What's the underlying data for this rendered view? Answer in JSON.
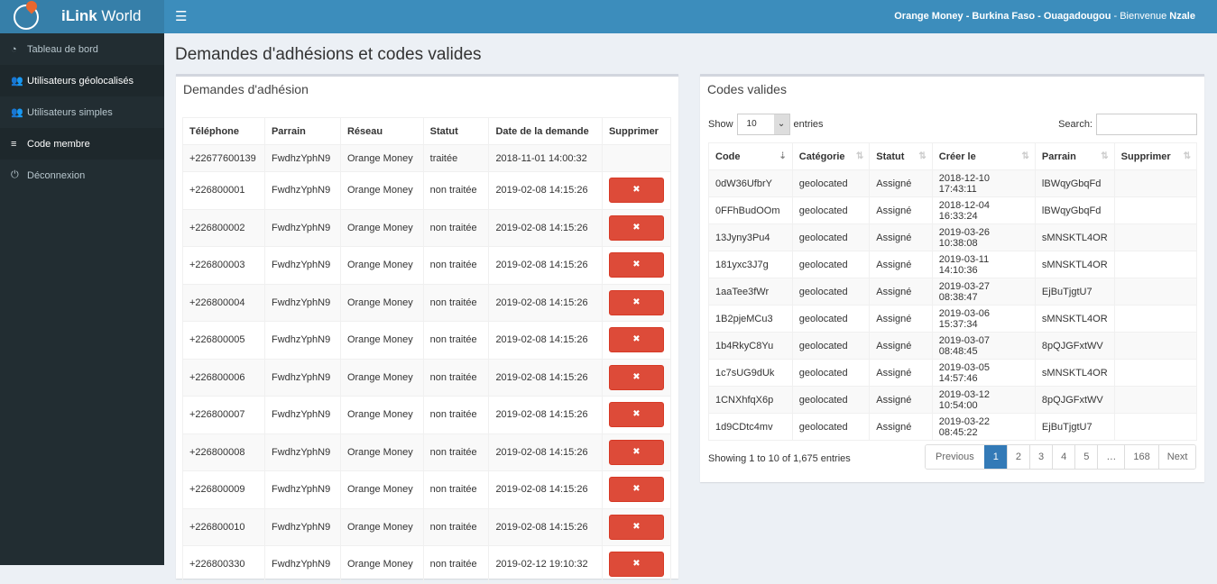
{
  "header": {
    "brand_bold": "iLink",
    "brand_rest": " World",
    "context": "Orange Money - Burkina Faso - Ouagadougou",
    "welcome": " - Bienvenue ",
    "user": "Nzale"
  },
  "sidebar": {
    "items": [
      {
        "label": "Tableau de bord",
        "icon": "dashboard-icon"
      },
      {
        "label": "Utilisateurs géolocalisés",
        "icon": "users-icon"
      },
      {
        "label": "Utilisateurs simples",
        "icon": "users-icon"
      },
      {
        "label": "Code membre",
        "icon": "database-icon"
      },
      {
        "label": "Déconnexion",
        "icon": "power-icon"
      }
    ]
  },
  "page": {
    "title": "Demandes d'adhésions et codes valides"
  },
  "requests": {
    "title": "Demandes d'adhésion",
    "columns": [
      "Téléphone",
      "Parrain",
      "Réseau",
      "Statut",
      "Date de la demande",
      "Supprimer"
    ],
    "delete_icon": "✖",
    "rows": [
      [
        "+22677600139",
        "FwdhzYphN9",
        "Orange Money",
        "traitée",
        "2018-11-01 14:00:32"
      ],
      [
        "+226800001",
        "FwdhzYphN9",
        "Orange Money",
        "non traitée",
        "2019-02-08 14:15:26"
      ],
      [
        "+226800002",
        "FwdhzYphN9",
        "Orange Money",
        "non traitée",
        "2019-02-08 14:15:26"
      ],
      [
        "+226800003",
        "FwdhzYphN9",
        "Orange Money",
        "non traitée",
        "2019-02-08 14:15:26"
      ],
      [
        "+226800004",
        "FwdhzYphN9",
        "Orange Money",
        "non traitée",
        "2019-02-08 14:15:26"
      ],
      [
        "+226800005",
        "FwdhzYphN9",
        "Orange Money",
        "non traitée",
        "2019-02-08 14:15:26"
      ],
      [
        "+226800006",
        "FwdhzYphN9",
        "Orange Money",
        "non traitée",
        "2019-02-08 14:15:26"
      ],
      [
        "+226800007",
        "FwdhzYphN9",
        "Orange Money",
        "non traitée",
        "2019-02-08 14:15:26"
      ],
      [
        "+226800008",
        "FwdhzYphN9",
        "Orange Money",
        "non traitée",
        "2019-02-08 14:15:26"
      ],
      [
        "+226800009",
        "FwdhzYphN9",
        "Orange Money",
        "non traitée",
        "2019-02-08 14:15:26"
      ],
      [
        "+226800010",
        "FwdhzYphN9",
        "Orange Money",
        "non traitée",
        "2019-02-08 14:15:26"
      ],
      [
        "+226800330",
        "FwdhzYphN9",
        "Orange Money",
        "non traitée",
        "2019-02-12 19:10:32"
      ]
    ]
  },
  "codes": {
    "title": "Codes valides",
    "show_label": "Show",
    "entries_label": "entries",
    "page_length": "10",
    "search_label": "Search:",
    "search_value": "",
    "columns": [
      "Code",
      "Catégorie",
      "Statut",
      "Créer le",
      "Parrain",
      "Supprimer"
    ],
    "rows": [
      [
        "0dW36UfbrY",
        "geolocated",
        "Assigné",
        "2018-12-10 17:43:11",
        "lBWqyGbqFd",
        ""
      ],
      [
        "0FFhBudOOm",
        "geolocated",
        "Assigné",
        "2018-12-04 16:33:24",
        "lBWqyGbqFd",
        ""
      ],
      [
        "13Jyny3Pu4",
        "geolocated",
        "Assigné",
        "2019-03-26 10:38:08",
        "sMNSKTL4OR",
        ""
      ],
      [
        "181yxc3J7g",
        "geolocated",
        "Assigné",
        "2019-03-11 14:10:36",
        "sMNSKTL4OR",
        ""
      ],
      [
        "1aaTee3fWr",
        "geolocated",
        "Assigné",
        "2019-03-27 08:38:47",
        "EjBuTjgtU7",
        ""
      ],
      [
        "1B2pjeMCu3",
        "geolocated",
        "Assigné",
        "2019-03-06 15:37:34",
        "sMNSKTL4OR",
        ""
      ],
      [
        "1b4RkyC8Yu",
        "geolocated",
        "Assigné",
        "2019-03-07 08:48:45",
        "8pQJGFxtWV",
        ""
      ],
      [
        "1c7sUG9dUk",
        "geolocated",
        "Assigné",
        "2019-03-05 14:57:46",
        "sMNSKTL4OR",
        ""
      ],
      [
        "1CNXhfqX6p",
        "geolocated",
        "Assigné",
        "2019-03-12 10:54:00",
        "8pQJGFxtWV",
        ""
      ],
      [
        "1d9CDtc4mv",
        "geolocated",
        "Assigné",
        "2019-03-22 08:45:22",
        "EjBuTjgtU7",
        ""
      ]
    ],
    "info": "Showing 1 to 10 of 1,675 entries",
    "pagination": [
      "Previous",
      "1",
      "2",
      "3",
      "4",
      "5",
      "…",
      "168",
      "Next"
    ],
    "current_page": "1"
  }
}
